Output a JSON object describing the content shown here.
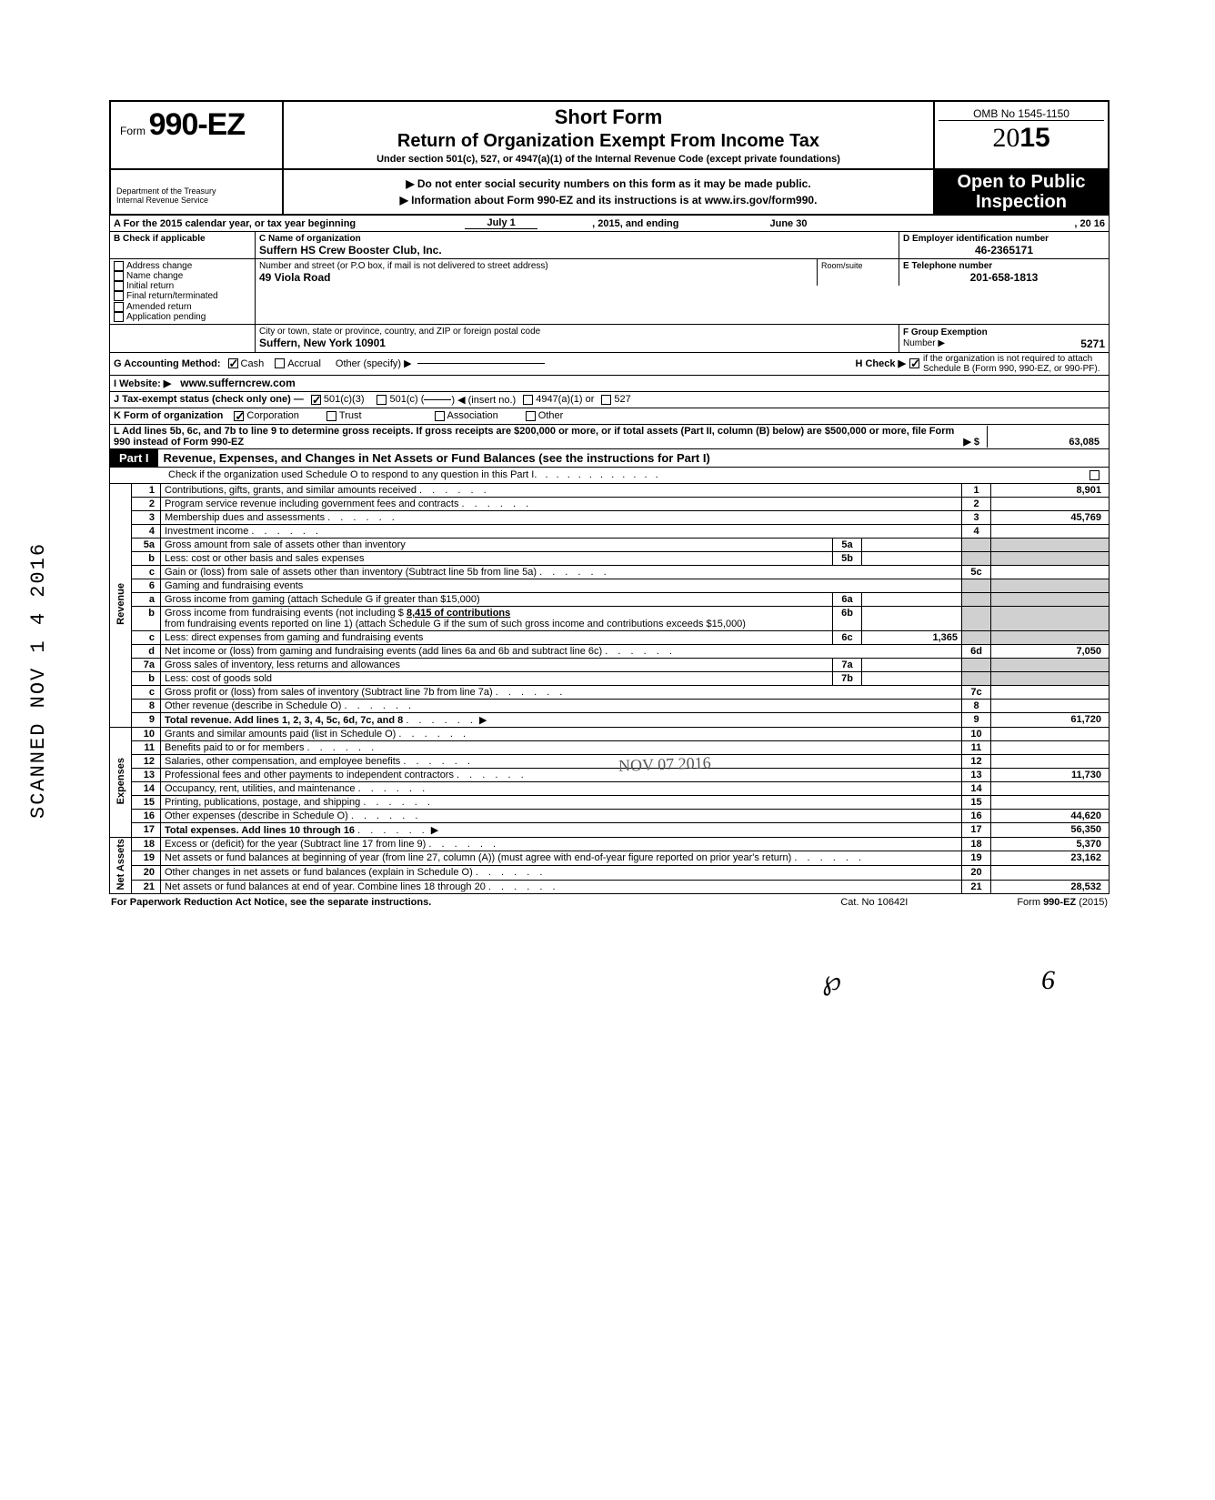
{
  "form": {
    "form_word": "Form",
    "form_number": "990-EZ",
    "short_form": "Short Form",
    "title": "Return of Organization Exempt From Income Tax",
    "under_section": "Under section 501(c), 527, or 4947(a)(1) of the Internal Revenue Code (except private foundations)",
    "omb": "OMB No 1545-1150",
    "year_prefix": "20",
    "year_bold": "15",
    "do_not_enter": "▶ Do not enter social security numbers on this form as it may be made public.",
    "info_at": "▶ Information about Form 990-EZ and its instructions is at www.irs.gov/form990.",
    "dept1": "Department of the Treasury",
    "dept2": "Internal Revenue Service",
    "open1": "Open to Public",
    "open2": "Inspection"
  },
  "header": {
    "a_line": "A  For the 2015 calendar year, or tax year beginning",
    "a_begin": "July 1",
    "a_mid": ", 2015, and ending",
    "a_end": "June 30",
    "a_year": ", 20  16",
    "b_label": "B  Check if applicable",
    "b_items": [
      "Address change",
      "Name change",
      "Initial return",
      "Final return/terminated",
      "Amended return",
      "Application pending"
    ],
    "c_label": "C  Name of organization",
    "c_name": "Suffern HS Crew Booster Club, Inc.",
    "c_addr_label": "Number and street (or P.O  box, if mail is not delivered to street address)",
    "c_addr": "49 Viola Road",
    "room_label": "Room/suite",
    "c_city_label": "City or town, state or province, country, and ZIP or foreign postal code",
    "c_city": "Suffern, New York 10901",
    "d_label": "D Employer identification number",
    "d_val": "46-2365171",
    "e_label": "E Telephone number",
    "e_val": "201-658-1813",
    "f_label": "F  Group Exemption",
    "f_label2": "Number  ▶",
    "f_val": "5271",
    "g_label": "G  Accounting Method:",
    "g_cash": "Cash",
    "g_accrual": "Accrual",
    "g_other": "Other (specify) ▶",
    "h_label": "H  Check ▶",
    "h_text": "if the organization is not required to attach Schedule B (Form 990, 990-EZ, or 990-PF).",
    "i_label": "I   Website: ▶",
    "i_val": "www.sufferncrew.com",
    "j_label": "J  Tax-exempt status (check only one) —",
    "j_501c3": "501(c)(3)",
    "j_501c": "501(c) (",
    "j_insert": ") ◀ (insert no.)",
    "j_4947": "4947(a)(1) or",
    "j_527": "527",
    "k_label": "K  Form of organization",
    "k_corp": "Corporation",
    "k_trust": "Trust",
    "k_assoc": "Association",
    "k_other": "Other",
    "l_text": "L  Add lines 5b, 6c, and 7b to line 9 to determine gross receipts. If gross receipts are $200,000 or more, or if total assets (Part II, column (B) below) are $500,000 or more, file Form 990 instead of Form 990-EZ",
    "l_arrow": "▶   $",
    "l_val": "63,085"
  },
  "part1": {
    "tab": "Part I",
    "title": "Revenue, Expenses, and Changes in Net Assets or Fund Balances (see the instructions for Part I)",
    "check_line": "Check if the organization used Schedule O to respond to any question in this Part I"
  },
  "sections": {
    "revenue": "Revenue",
    "expenses": "Expenses",
    "netassets": "Net Assets"
  },
  "lines": [
    {
      "n": "1",
      "desc": "Contributions, gifts, grants, and similar amounts received",
      "r": "1",
      "v": "8,901"
    },
    {
      "n": "2",
      "desc": "Program service revenue including government fees and contracts",
      "r": "2",
      "v": ""
    },
    {
      "n": "3",
      "desc": "Membership dues and assessments",
      "r": "3",
      "v": "45,769"
    },
    {
      "n": "4",
      "desc": "Investment income",
      "r": "4",
      "v": ""
    },
    {
      "n": "5a",
      "desc": "Gross amount from sale of assets other than inventory",
      "m": "5a",
      "mv": ""
    },
    {
      "n": "b",
      "desc": "Less: cost or other basis and sales expenses",
      "m": "5b",
      "mv": ""
    },
    {
      "n": "c",
      "desc": "Gain or (loss) from sale of assets other than inventory (Subtract line 5b from line 5a)",
      "r": "5c",
      "v": ""
    },
    {
      "n": "6",
      "desc": "Gaming and fundraising events"
    },
    {
      "n": "a",
      "desc": "Gross income from gaming (attach Schedule G if greater than $15,000)",
      "m": "6a",
      "mv": ""
    },
    {
      "n": "b",
      "desc": "Gross income from fundraising events (not including  $",
      "extra": "8,415 of contributions",
      "desc2": "from fundraising events reported on line 1) (attach Schedule G if the sum of such gross income and contributions exceeds $15,000)",
      "m": "6b",
      "mv": ""
    },
    {
      "n": "c",
      "desc": "Less: direct expenses from gaming and fundraising events",
      "m": "6c",
      "mv": "1,365"
    },
    {
      "n": "d",
      "desc": "Net income or (loss) from gaming and fundraising events (add lines 6a and 6b and subtract line 6c)",
      "r": "6d",
      "v": "7,050"
    },
    {
      "n": "7a",
      "desc": "Gross sales of inventory, less returns and allowances",
      "m": "7a",
      "mv": ""
    },
    {
      "n": "b",
      "desc": "Less: cost of goods sold",
      "m": "7b",
      "mv": ""
    },
    {
      "n": "c",
      "desc": "Gross profit or (loss) from sales of inventory (Subtract line 7b from line 7a)",
      "r": "7c",
      "v": ""
    },
    {
      "n": "8",
      "desc": "Other revenue (describe in Schedule O)",
      "r": "8",
      "v": ""
    },
    {
      "n": "9",
      "desc": "Total revenue. Add lines 1, 2, 3, 4, 5c, 6d, 7c, and 8",
      "r": "9",
      "v": "61,720",
      "bold": true
    }
  ],
  "exp_lines": [
    {
      "n": "10",
      "desc": "Grants and similar amounts paid (list in Schedule O)",
      "r": "10",
      "v": ""
    },
    {
      "n": "11",
      "desc": "Benefits paid to or for members",
      "r": "11",
      "v": ""
    },
    {
      "n": "12",
      "desc": "Salaries, other compensation, and employee benefits",
      "r": "12",
      "v": ""
    },
    {
      "n": "13",
      "desc": "Professional fees and other payments to independent contractors",
      "r": "13",
      "v": "11,730"
    },
    {
      "n": "14",
      "desc": "Occupancy, rent, utilities, and maintenance",
      "r": "14",
      "v": ""
    },
    {
      "n": "15",
      "desc": "Printing, publications, postage, and shipping",
      "r": "15",
      "v": ""
    },
    {
      "n": "16",
      "desc": "Other expenses (describe in Schedule O)",
      "r": "16",
      "v": "44,620"
    },
    {
      "n": "17",
      "desc": "Total expenses. Add lines 10 through 16",
      "r": "17",
      "v": "56,350",
      "bold": true
    }
  ],
  "na_lines": [
    {
      "n": "18",
      "desc": "Excess or (deficit) for the year (Subtract line 17 from line 9)",
      "r": "18",
      "v": "5,370"
    },
    {
      "n": "19",
      "desc": "Net assets or fund balances at beginning of year (from line 27, column (A)) (must agree with end-of-year figure reported on prior year's return)",
      "r": "19",
      "v": "23,162"
    },
    {
      "n": "20",
      "desc": "Other changes in net assets or fund balances (explain in Schedule O)",
      "r": "20",
      "v": ""
    },
    {
      "n": "21",
      "desc": "Net assets or fund balances at end of year. Combine lines 18 through 20",
      "r": "21",
      "v": "28,532"
    }
  ],
  "footer": {
    "left": "For Paperwork Reduction Act Notice, see the separate instructions.",
    "mid": "Cat. No  10642I",
    "right_pre": "Form ",
    "right_bold": "990-EZ",
    "right_post": " (2015)"
  },
  "stamp": {
    "received": "NOV 07 2016",
    "scanned": "SCANNED NOV 1 4 2016"
  },
  "marks": {
    "p": "℘",
    "six": "6"
  },
  "colors": {
    "black": "#000000",
    "white": "#ffffff",
    "gray": "#d0d0d0"
  }
}
